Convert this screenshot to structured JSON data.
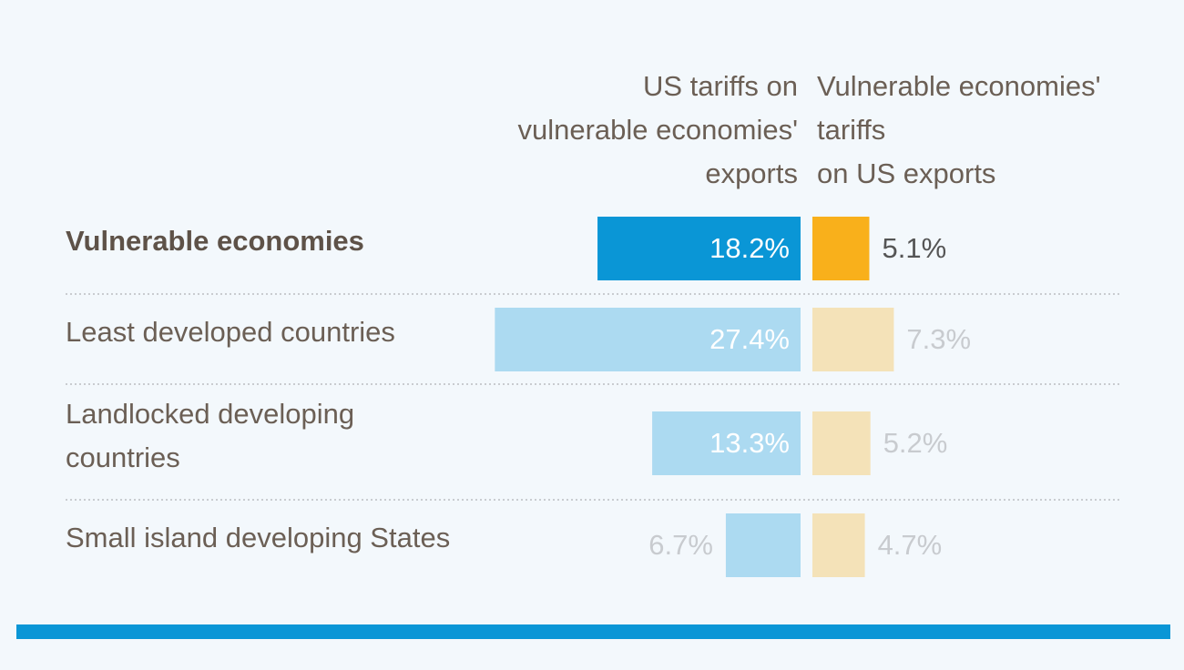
{
  "chart_data": {
    "type": "bar",
    "categories": [
      "Vulnerable economies",
      "Least developed countries",
      "Landlocked developing\ncountries",
      "Small island developing States"
    ],
    "series": [
      {
        "name": "US tariffs on\nvulnerable economies'\nexports",
        "color": "#0a96d6",
        "values": [
          18.2,
          27.4,
          13.3,
          6.7
        ],
        "value_labels": [
          "18.2%",
          "27.4%",
          "13.3%",
          "6.7%"
        ]
      },
      {
        "name": "Vulnerable economies'\ntariffs\non US exports",
        "color": "#f9b01b",
        "values": [
          5.1,
          7.3,
          5.2,
          4.7
        ],
        "value_labels": [
          "5.1%",
          "7.3%",
          "5.2%",
          "4.7%"
        ]
      }
    ]
  }
}
